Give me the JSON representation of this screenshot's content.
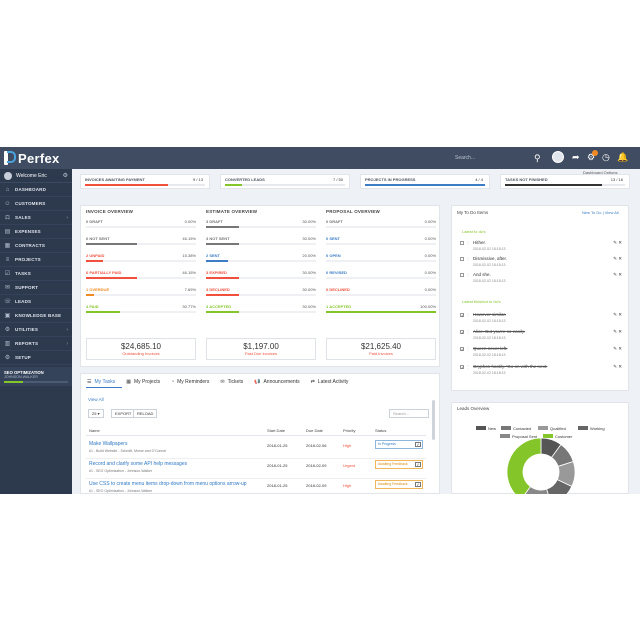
{
  "app": {
    "name": "Perfex",
    "search_placeholder": "Search...",
    "dashboard_options": "Dashboard Options"
  },
  "sidebar": {
    "welcome": "Welcome Eric",
    "items": [
      {
        "label": "DASHBOARD",
        "icon": "home-icon"
      },
      {
        "label": "CUSTOMERS",
        "icon": "users-icon"
      },
      {
        "label": "SALES",
        "icon": "balance-icon",
        "has_children": true
      },
      {
        "label": "EXPENSES",
        "icon": "file-icon"
      },
      {
        "label": "CONTRACTS",
        "icon": "contract-icon"
      },
      {
        "label": "PROJECTS",
        "icon": "bars-icon"
      },
      {
        "label": "TASKS",
        "icon": "tasks-icon"
      },
      {
        "label": "SUPPORT",
        "icon": "ticket-icon"
      },
      {
        "label": "LEADS",
        "icon": "tty-icon"
      },
      {
        "label": "KNOWLEDGE BASE",
        "icon": "folder-icon"
      },
      {
        "label": "UTILITIES",
        "icon": "cogs-icon",
        "has_children": true
      },
      {
        "label": "REPORTS",
        "icon": "chart-icon",
        "has_children": true
      },
      {
        "label": "SETUP",
        "icon": "gear-icon"
      }
    ],
    "project": {
      "title": "SEO OPTIMIZATION",
      "subtitle": "JOHNSON-WALKER",
      "progress": 0.3
    }
  },
  "stats": [
    {
      "label": "INVOICES AWAITING PAYMENT",
      "value": "9 / 13",
      "color": "#f0503c",
      "fill": 0.69
    },
    {
      "label": "CONVERTED LEADS",
      "value": "7 / 50",
      "color": "#84c529",
      "fill": 0.14
    },
    {
      "label": "PROJECTS IN PROGRESS",
      "value": "4 / 4",
      "color": "#3b7cc4",
      "fill": 1.0
    },
    {
      "label": "TASKS NOT FINISHED",
      "value": "13 / 16",
      "color": "#333333",
      "fill": 0.81
    }
  ],
  "invoice_overview": {
    "title": "INVOICE OVERVIEW",
    "rows": [
      {
        "label": "0 DRAFT",
        "pct": "0.00%",
        "color": "#777777",
        "fill": 0.0
      },
      {
        "label": "6 NOT SENT",
        "pct": "46.15%",
        "color": "#777777",
        "fill": 0.4615
      },
      {
        "label": "2 UNPAID",
        "pct": "15.38%",
        "color": "#f0503c",
        "fill": 0.1538
      },
      {
        "label": "6 PARTIALLY PAID",
        "pct": "46.15%",
        "color": "#f0503c",
        "fill": 0.4615
      },
      {
        "label": "1 OVERDUE",
        "pct": "7.69%",
        "color": "#f08a24",
        "fill": 0.0769
      },
      {
        "label": "4 PAID",
        "pct": "30.77%",
        "color": "#84c529",
        "fill": 0.3077
      }
    ],
    "total": "$24,685.10",
    "total_label": "Outstanding Invoices"
  },
  "estimate_overview": {
    "title": "ESTIMATE OVERVIEW",
    "rows": [
      {
        "label": "3 DRAFT",
        "pct": "30.00%",
        "color": "#777777",
        "fill": 0.3
      },
      {
        "label": "3 NOT SENT",
        "pct": "30.00%",
        "color": "#777777",
        "fill": 0.3
      },
      {
        "label": "2 SENT",
        "pct": "20.00%",
        "color": "#3b7cc4",
        "fill": 0.2
      },
      {
        "label": "3 EXPIRED",
        "pct": "30.00%",
        "color": "#f0503c",
        "fill": 0.3
      },
      {
        "label": "3 DECLINED",
        "pct": "30.00%",
        "color": "#f0503c",
        "fill": 0.3
      },
      {
        "label": "3 ACCEPTED",
        "pct": "30.00%",
        "color": "#84c529",
        "fill": 0.3
      }
    ],
    "total": "$1,197.00",
    "total_label": "Past Due Invoices"
  },
  "proposal_overview": {
    "title": "PROPOSAL OVERVIEW",
    "rows": [
      {
        "label": "0 DRAFT",
        "pct": "0.00%",
        "color": "#777777",
        "fill": 0.0
      },
      {
        "label": "0 SENT",
        "pct": "0.00%",
        "color": "#3b7cc4",
        "fill": 0.0
      },
      {
        "label": "0 OPEN",
        "pct": "0.00%",
        "color": "#3b7cc4",
        "fill": 0.0
      },
      {
        "label": "0 REVISED",
        "pct": "0.00%",
        "color": "#3b7cc4",
        "fill": 0.0
      },
      {
        "label": "0 DECLINED",
        "pct": "0.00%",
        "color": "#f0503c",
        "fill": 0.0
      },
      {
        "label": "1 ACCEPTED",
        "pct": "100.00%",
        "color": "#84c529",
        "fill": 1.0
      }
    ],
    "total": "$21,625.40",
    "total_label": "Paid Invoices"
  },
  "tasks_panel": {
    "tabs": [
      "My Tasks",
      "My Projects",
      "My Reminders",
      "Tickets",
      "Announcements",
      "Latest Activity"
    ],
    "view_all": "View All",
    "page_size": "25",
    "export": "EXPORT",
    "reload": "RELOAD",
    "search_placeholder": "Search...",
    "columns": [
      "Name",
      "Start Date",
      "Due Date",
      "Priority",
      "Status"
    ],
    "rows": [
      {
        "name": "Make Wallpapers",
        "sub": "#1 - Build Website - Schmitt, Morse and O'Conner",
        "start": "2018-01-25",
        "due": "2018-02-06",
        "priority": "High",
        "status": "In Progress",
        "warn": false
      },
      {
        "name": "Record and clarify some API help messages",
        "sub": "#1 - SEO Optimization - Johnson-Walker",
        "start": "2018-01-25",
        "due": "2018-02-09",
        "priority": "Urgent",
        "status": "Awaiting Feedback",
        "warn": true
      },
      {
        "name": "Use CSS to create menu items drop-down from menu options arrow-up",
        "sub": "#1 - SEO Optimization - Johnson-Walker",
        "start": "2018-01-25",
        "due": "2018-02-09",
        "priority": "High",
        "status": "Awaiting Feedback",
        "warn": true
      }
    ]
  },
  "todo": {
    "title": "My To Do Items",
    "new_link": "New To Do | View All",
    "latest_label": "Latest to do's",
    "finished_label": "Latest finished to do's",
    "items": [
      {
        "text": "Hither.",
        "date": "2018-02-02 18:18:13",
        "done": false
      },
      {
        "text": "Dismissive, after.",
        "date": "2018-02-02 18:18:13",
        "done": false
      },
      {
        "text": "And she.",
        "date": "2018-02-02 18:18:13",
        "done": false
      },
      {
        "text": "However similar.",
        "date": "2018-02-02 18:18:13",
        "done": true
      },
      {
        "text": "Alice. But you're so easily.",
        "date": "2018-02-02 18:18:13",
        "done": true
      },
      {
        "text": "Queen never left.",
        "date": "2018-02-02 18:18:13",
        "done": true
      },
      {
        "text": "Gryphon hastily. 'Go on with the next.",
        "date": "2018-02-02 18:18:13",
        "done": true
      }
    ]
  },
  "leads": {
    "title": "Leads Overview",
    "legend": [
      {
        "label": "New",
        "color": "#555555"
      },
      {
        "label": "Contacted",
        "color": "#777777"
      },
      {
        "label": "Qualified",
        "color": "#999999"
      },
      {
        "label": "Working",
        "color": "#666666"
      },
      {
        "label": "Proposal Sent",
        "color": "#888888"
      },
      {
        "label": "Customer",
        "color": "#84c529"
      }
    ],
    "slices": [
      0.1,
      0.1,
      0.12,
      0.13,
      0.15,
      0.4
    ]
  }
}
